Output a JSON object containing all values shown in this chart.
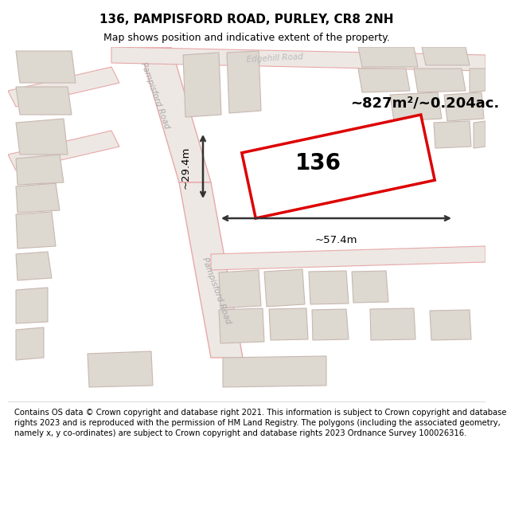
{
  "title": "136, PAMPISFORD ROAD, PURLEY, CR8 2NH",
  "subtitle": "Map shows position and indicative extent of the property.",
  "footer": "Contains OS data © Crown copyright and database right 2021. This information is subject to Crown copyright and database rights 2023 and is reproduced with the permission of HM Land Registry. The polygons (including the associated geometry, namely x, y co-ordinates) are subject to Crown copyright and database rights 2023 Ordnance Survey 100026316.",
  "area_label": "~827m²/~0.204ac.",
  "number_label": "136",
  "width_label": "~57.4m",
  "height_label": "~29.4m",
  "road_label_main": "Pampisford Road",
  "road_label_top": "Edgehill Road",
  "map_bg": "#f7f4f0",
  "road_outline": "#e8a8a8",
  "road_fill": "#ede8e4",
  "building_fill": "#ddd8d0",
  "building_edge": "#c8b8b0",
  "highlight_fill": "#ffffff",
  "highlight_edge": "#dd0000",
  "dim_color": "#333333",
  "title_fontsize": 11,
  "subtitle_fontsize": 9,
  "footer_fontsize": 7.2,
  "number_fontsize": 20,
  "area_fontsize": 13,
  "dim_fontsize": 9.5
}
